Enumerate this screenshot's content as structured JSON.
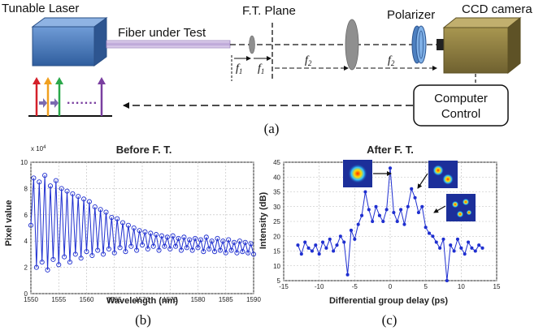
{
  "setup": {
    "laser_label": "Tunable Laser",
    "fiber_label": "Fiber under Test",
    "ft_plane_label": "F.T. Plane",
    "polarizer_label": "Polarizer",
    "ccd_label": "CCD camera",
    "computer_label_line1": "Computer",
    "computer_label_line2": "Control",
    "f1_label": "f",
    "f1_sub": "1",
    "f2_label": "f",
    "f2_sub": "2",
    "spectrum_dots": ".......",
    "panel_label": "(a)",
    "colors": {
      "laser_box": "#3f73b8",
      "ccd_box": "#8b7a3e",
      "lens": "#8f8f8f",
      "polarizer": "#5b8ec9",
      "arrow_red": "#d4202a",
      "arrow_orange": "#f0a020",
      "arrow_green": "#2aa84a",
      "arrow_purple": "#7a3fa0",
      "shift_arrow": "#7b6bb0"
    }
  },
  "panel_b": {
    "title": "Before F. T.",
    "xlabel": "Wavelength (nm)",
    "ylabel": "Pixel value",
    "exponent": "x 10",
    "exponent_power": "4",
    "panel_label": "(b)",
    "xticks": [
      "1550",
      "1555",
      "1560",
      "1565",
      "1570",
      "1575",
      "1580",
      "1585",
      "1590"
    ],
    "yticks": [
      "0",
      "2",
      "4",
      "6",
      "8",
      "10"
    ]
  },
  "panel_c": {
    "title": "After F. T.",
    "xlabel": "Differential group delay (ps)",
    "ylabel": "Intensity (dB)",
    "panel_label": "(c)",
    "xticks": [
      "-15",
      "-10",
      "-5",
      "0",
      "5",
      "10",
      "15"
    ],
    "yticks": [
      "5",
      "10",
      "15",
      "20",
      "25",
      "30",
      "35",
      "40",
      "45"
    ]
  },
  "chart_data": [
    {
      "type": "line",
      "title": "Before F. T.",
      "xlabel": "Wavelength (nm)",
      "ylabel": "Pixel value",
      "xlim": [
        1550,
        1590
      ],
      "ylim": [
        0,
        100000
      ],
      "grid": true,
      "series": [
        {
          "color": "#1f2fd0",
          "x": [
            1550.0,
            1550.5,
            1551.0,
            1551.5,
            1552.0,
            1552.5,
            1553.0,
            1553.5,
            1554.0,
            1554.5,
            1555.0,
            1555.5,
            1556.0,
            1556.5,
            1557.0,
            1557.5,
            1558.0,
            1558.5,
            1559.0,
            1559.5,
            1560.0,
            1560.5,
            1561.0,
            1561.5,
            1562.0,
            1562.5,
            1563.0,
            1563.5,
            1564.0,
            1564.5,
            1565.0,
            1565.5,
            1566.0,
            1566.5,
            1567.0,
            1567.5,
            1568.0,
            1568.5,
            1569.0,
            1569.5,
            1570.0,
            1570.5,
            1571.0,
            1571.5,
            1572.0,
            1572.5,
            1573.0,
            1573.5,
            1574.0,
            1574.5,
            1575.0,
            1575.5,
            1576.0,
            1576.5,
            1577.0,
            1577.5,
            1578.0,
            1578.5,
            1579.0,
            1579.5,
            1580.0,
            1580.5,
            1581.0,
            1581.5,
            1582.0,
            1582.5,
            1583.0,
            1583.5,
            1584.0,
            1584.5,
            1585.0,
            1585.5,
            1586.0,
            1586.5,
            1587.0,
            1587.5,
            1588.0,
            1588.5,
            1589.0,
            1589.5,
            1590.0
          ],
          "y": [
            52000,
            88000,
            20000,
            85000,
            24000,
            90000,
            18000,
            82000,
            26000,
            86000,
            22000,
            80000,
            28000,
            78000,
            24000,
            76000,
            30000,
            74000,
            27000,
            72000,
            32000,
            70000,
            29000,
            66000,
            33000,
            64000,
            30000,
            62000,
            34000,
            58000,
            31000,
            57000,
            35000,
            54000,
            32000,
            52000,
            36000,
            50000,
            33000,
            48000,
            37000,
            47000,
            34000,
            46000,
            36000,
            45000,
            33000,
            44000,
            36000,
            43000,
            34000,
            44000,
            36000,
            42000,
            33000,
            43000,
            35000,
            41000,
            33000,
            42000,
            35000,
            41000,
            32000,
            43000,
            34000,
            40000,
            32000,
            42000,
            33000,
            40000,
            31000,
            41000,
            33000,
            39000,
            31000,
            40000,
            32000,
            39000,
            31000,
            38000,
            30000
          ]
        }
      ]
    },
    {
      "type": "line",
      "title": "After F. T.",
      "xlabel": "Differential group delay (ps)",
      "ylabel": "Intensity (dB)",
      "xlim": [
        -15,
        15
      ],
      "ylim": [
        5,
        45
      ],
      "grid": true,
      "series": [
        {
          "color": "#1f2fd0",
          "x": [
            -13.0,
            -12.5,
            -12.0,
            -11.5,
            -11.0,
            -10.5,
            -10.0,
            -9.5,
            -9.0,
            -8.5,
            -8.0,
            -7.5,
            -7.0,
            -6.5,
            -6.0,
            -5.5,
            -5.0,
            -4.5,
            -4.0,
            -3.5,
            -3.0,
            -2.5,
            -2.0,
            -1.5,
            -1.0,
            -0.5,
            0.0,
            0.5,
            1.0,
            1.5,
            2.0,
            2.5,
            3.0,
            3.5,
            4.0,
            4.5,
            5.0,
            5.5,
            6.0,
            6.5,
            7.0,
            7.5,
            8.0,
            8.5,
            9.0,
            9.5,
            10.0,
            10.5,
            11.0,
            11.5,
            12.0,
            12.5,
            13.0
          ],
          "y": [
            17,
            14,
            18,
            16,
            15,
            17,
            14,
            18,
            16,
            19,
            15,
            17,
            20,
            18,
            7,
            22,
            19,
            24,
            27,
            35,
            29,
            25,
            30,
            27,
            25,
            29,
            43,
            28,
            25,
            29,
            24,
            30,
            36,
            33,
            28,
            30,
            23,
            21,
            20,
            18,
            16,
            19,
            5,
            17,
            15,
            19,
            16,
            14,
            18,
            16,
            15,
            17,
            16
          ]
        }
      ]
    }
  ]
}
